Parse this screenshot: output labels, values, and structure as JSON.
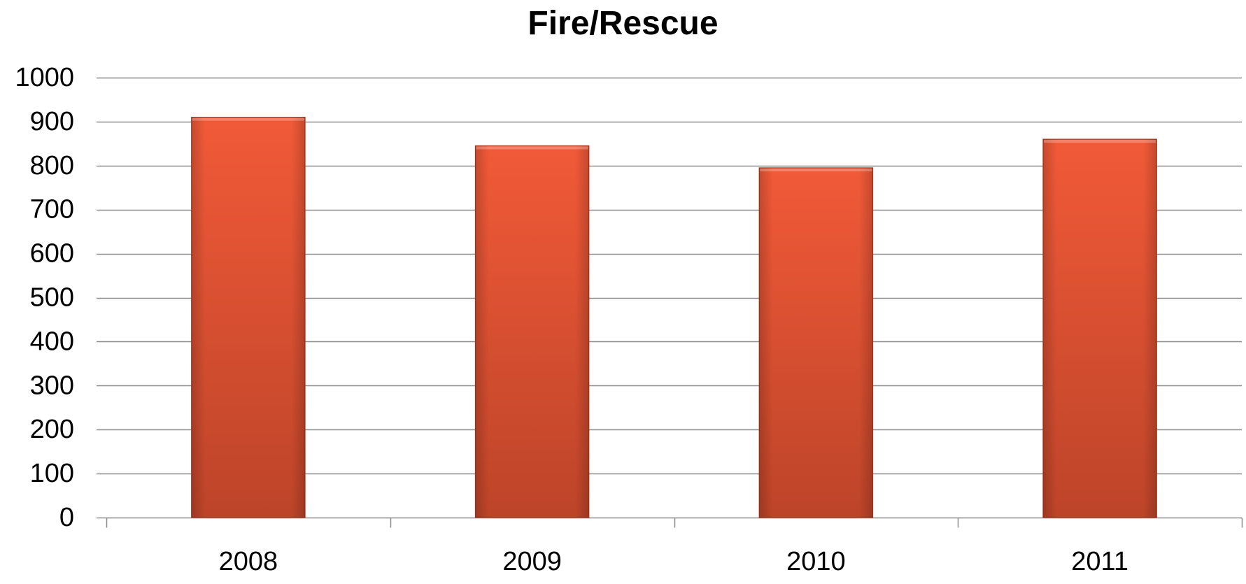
{
  "chart_data": {
    "type": "bar",
    "title": "Fire/Rescue",
    "categories": [
      "2008",
      "2009",
      "2010",
      "2011"
    ],
    "values": [
      910,
      845,
      795,
      860
    ],
    "xlabel": "",
    "ylabel": "",
    "ylim": [
      0,
      1000
    ],
    "yticks": [
      0,
      100,
      200,
      300,
      400,
      500,
      600,
      700,
      800,
      900,
      1000
    ],
    "grid": true,
    "legend": "none",
    "colors": {
      "bar_top": "#F15A38",
      "bar_bottom": "#BD4429",
      "bar_edge": "#A8381F",
      "gridline": "#8C8C8C",
      "axis": "#8C8C8C"
    }
  }
}
